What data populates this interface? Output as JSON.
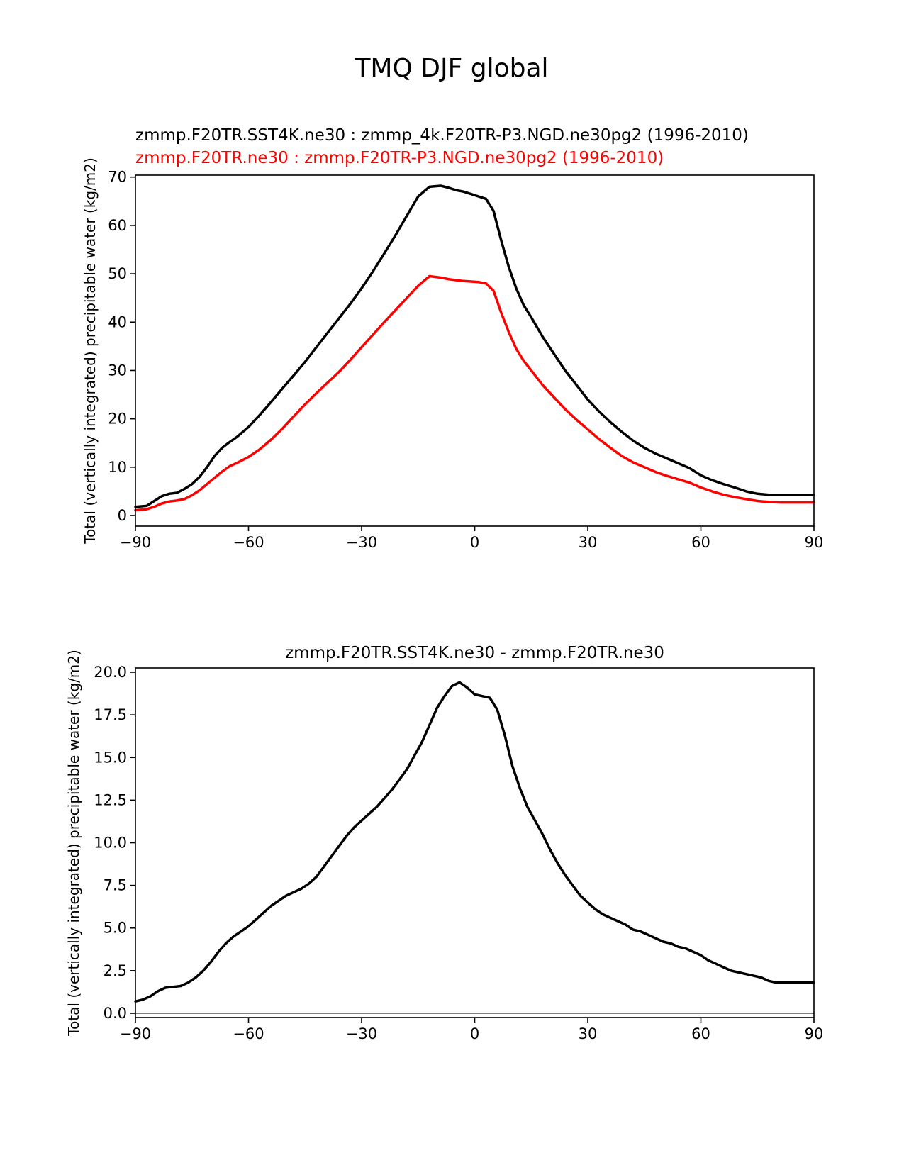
{
  "figure_title": "TMQ DJF global",
  "colors": {
    "test": "#000000",
    "ref": "#ff0000",
    "zero_line": "#808080"
  },
  "chart_data": [
    {
      "type": "line",
      "title_lines": [
        "zmmp.F20TR.SST4K.ne30 : zmmp_4k.F20TR-P3.NGD.ne30pg2 (1996-2010)",
        "zmmp.F20TR.ne30 : zmmp.F20TR-P3.NGD.ne30pg2 (1996-2010)"
      ],
      "ylabel": "Total (vertically integrated) precipitable water (kg/m2)",
      "xlabel": "",
      "xlim": [
        -90,
        90
      ],
      "ylim": [
        -2.2,
        70.4
      ],
      "xticks": [
        -90,
        -60,
        -30,
        0,
        30,
        60,
        90
      ],
      "xtick_labels": [
        "−90",
        "−60",
        "−30",
        "0",
        "30",
        "60",
        "90"
      ],
      "yticks": [
        0,
        10,
        20,
        30,
        40,
        50,
        60,
        70
      ],
      "ytick_labels": [
        "0",
        "10",
        "20",
        "30",
        "40",
        "50",
        "60",
        "70"
      ],
      "series": [
        {
          "name": "zmmp.F20TR.SST4K.ne30",
          "color": "#000000",
          "x": [
            -90,
            -87,
            -85,
            -83,
            -81,
            -79,
            -77,
            -75,
            -73,
            -71,
            -69,
            -67,
            -65,
            -63,
            -60,
            -57,
            -54,
            -51,
            -48,
            -45,
            -42,
            -39,
            -36,
            -33,
            -30,
            -27,
            -24,
            -21,
            -18,
            -15,
            -12,
            -9,
            -7,
            -5,
            -3,
            -1,
            1,
            3,
            5,
            7,
            9,
            11,
            13,
            15,
            18,
            21,
            24,
            27,
            30,
            33,
            36,
            39,
            42,
            45,
            48,
            51,
            54,
            57,
            60,
            63,
            66,
            69,
            72,
            75,
            78,
            81,
            84,
            87,
            90
          ],
          "values": [
            1.8,
            2.0,
            3.0,
            4.0,
            4.5,
            4.7,
            5.5,
            6.5,
            8.0,
            10.0,
            12.3,
            14.0,
            15.2,
            16.3,
            18.3,
            20.8,
            23.5,
            26.3,
            29.0,
            31.8,
            34.8,
            37.8,
            40.8,
            43.8,
            47.0,
            50.5,
            54.2,
            58.0,
            62.0,
            66.0,
            68.0,
            68.2,
            67.8,
            67.3,
            67.0,
            66.5,
            66.0,
            65.5,
            63.0,
            57.0,
            51.5,
            47.0,
            43.5,
            41.0,
            37.0,
            33.5,
            30.0,
            27.0,
            24.0,
            21.5,
            19.3,
            17.3,
            15.5,
            14.0,
            12.8,
            11.8,
            10.8,
            9.8,
            8.3,
            7.3,
            6.5,
            5.8,
            5.0,
            4.5,
            4.3,
            4.3,
            4.3,
            4.3,
            4.2
          ]
        },
        {
          "name": "zmmp.F20TR.ne30",
          "color": "#ff0000",
          "x": [
            -90,
            -87,
            -85,
            -83,
            -81,
            -79,
            -77,
            -75,
            -73,
            -71,
            -69,
            -67,
            -65,
            -63,
            -60,
            -57,
            -54,
            -51,
            -48,
            -45,
            -42,
            -39,
            -36,
            -33,
            -30,
            -27,
            -24,
            -21,
            -18,
            -15,
            -12,
            -9,
            -7,
            -5,
            -3,
            -1,
            1,
            3,
            5,
            7,
            9,
            11,
            13,
            15,
            18,
            21,
            24,
            27,
            30,
            33,
            36,
            39,
            42,
            45,
            48,
            51,
            54,
            57,
            60,
            63,
            66,
            69,
            72,
            75,
            78,
            81,
            84,
            87,
            90
          ],
          "values": [
            1.1,
            1.3,
            1.8,
            2.5,
            2.9,
            3.1,
            3.4,
            4.2,
            5.2,
            6.5,
            7.8,
            9.1,
            10.2,
            10.9,
            12.1,
            13.7,
            15.7,
            18.0,
            20.5,
            23.0,
            25.3,
            27.5,
            29.7,
            32.2,
            34.8,
            37.4,
            40.0,
            42.5,
            45.0,
            47.5,
            49.5,
            49.2,
            48.9,
            48.7,
            48.5,
            48.4,
            48.3,
            48.0,
            46.5,
            42.0,
            38.0,
            34.5,
            32.0,
            30.0,
            27.0,
            24.5,
            22.0,
            19.8,
            17.8,
            15.8,
            14.0,
            12.3,
            11.0,
            10.0,
            9.0,
            8.2,
            7.5,
            6.8,
            5.8,
            5.0,
            4.3,
            3.8,
            3.4,
            3.0,
            2.8,
            2.7,
            2.7,
            2.7,
            2.7
          ]
        }
      ]
    },
    {
      "type": "line",
      "title_lines": [
        "zmmp.F20TR.SST4K.ne30 - zmmp.F20TR.ne30"
      ],
      "ylabel": "Total (vertically integrated) precipitable water (kg/m2)",
      "xlabel": "",
      "xlim": [
        -90,
        90
      ],
      "ylim": [
        -0.25,
        20.25
      ],
      "xticks": [
        -90,
        -60,
        -30,
        0,
        30,
        60,
        90
      ],
      "xtick_labels": [
        "−90",
        "−60",
        "−30",
        "0",
        "30",
        "60",
        "90"
      ],
      "yticks": [
        0,
        2.5,
        5,
        7.5,
        10,
        12.5,
        15,
        17.5,
        20
      ],
      "ytick_labels": [
        "0.0",
        "2.5",
        "5.0",
        "7.5",
        "10.0",
        "12.5",
        "15.0",
        "17.5",
        "20.0"
      ],
      "zero_line": 0,
      "series": [
        {
          "name": "zmmp.F20TR.SST4K.ne30 - zmmp.F20TR.ne30",
          "color": "#000000",
          "x": [
            -90,
            -88,
            -86,
            -84,
            -82,
            -80,
            -78,
            -76,
            -74,
            -72,
            -70,
            -68,
            -66,
            -64,
            -62,
            -60,
            -58,
            -56,
            -54,
            -52,
            -50,
            -48,
            -46,
            -44,
            -42,
            -40,
            -38,
            -36,
            -34,
            -32,
            -30,
            -28,
            -26,
            -24,
            -22,
            -20,
            -18,
            -16,
            -14,
            -12,
            -10,
            -8,
            -6,
            -4,
            -2,
            0,
            2,
            4,
            6,
            8,
            10,
            12,
            14,
            16,
            18,
            20,
            22,
            24,
            26,
            28,
            30,
            32,
            34,
            36,
            38,
            40,
            42,
            44,
            46,
            48,
            50,
            52,
            54,
            56,
            58,
            60,
            62,
            64,
            66,
            68,
            70,
            72,
            74,
            76,
            78,
            80,
            82,
            84,
            86,
            88,
            90
          ],
          "values": [
            0.7,
            0.8,
            1.0,
            1.3,
            1.5,
            1.55,
            1.6,
            1.8,
            2.1,
            2.5,
            3.0,
            3.6,
            4.1,
            4.5,
            4.8,
            5.1,
            5.5,
            5.9,
            6.3,
            6.6,
            6.9,
            7.1,
            7.3,
            7.6,
            8.0,
            8.6,
            9.2,
            9.8,
            10.4,
            10.9,
            11.3,
            11.7,
            12.1,
            12.6,
            13.1,
            13.7,
            14.3,
            15.1,
            15.9,
            16.9,
            17.9,
            18.6,
            19.2,
            19.4,
            19.1,
            18.7,
            18.6,
            18.5,
            17.8,
            16.3,
            14.5,
            13.2,
            12.1,
            11.3,
            10.5,
            9.6,
            8.8,
            8.1,
            7.5,
            6.9,
            6.5,
            6.1,
            5.8,
            5.6,
            5.4,
            5.2,
            4.9,
            4.8,
            4.6,
            4.4,
            4.2,
            4.1,
            3.9,
            3.8,
            3.6,
            3.4,
            3.1,
            2.9,
            2.7,
            2.5,
            2.4,
            2.3,
            2.2,
            2.1,
            1.9,
            1.8,
            1.8,
            1.8,
            1.8,
            1.8,
            1.8
          ]
        }
      ]
    }
  ]
}
